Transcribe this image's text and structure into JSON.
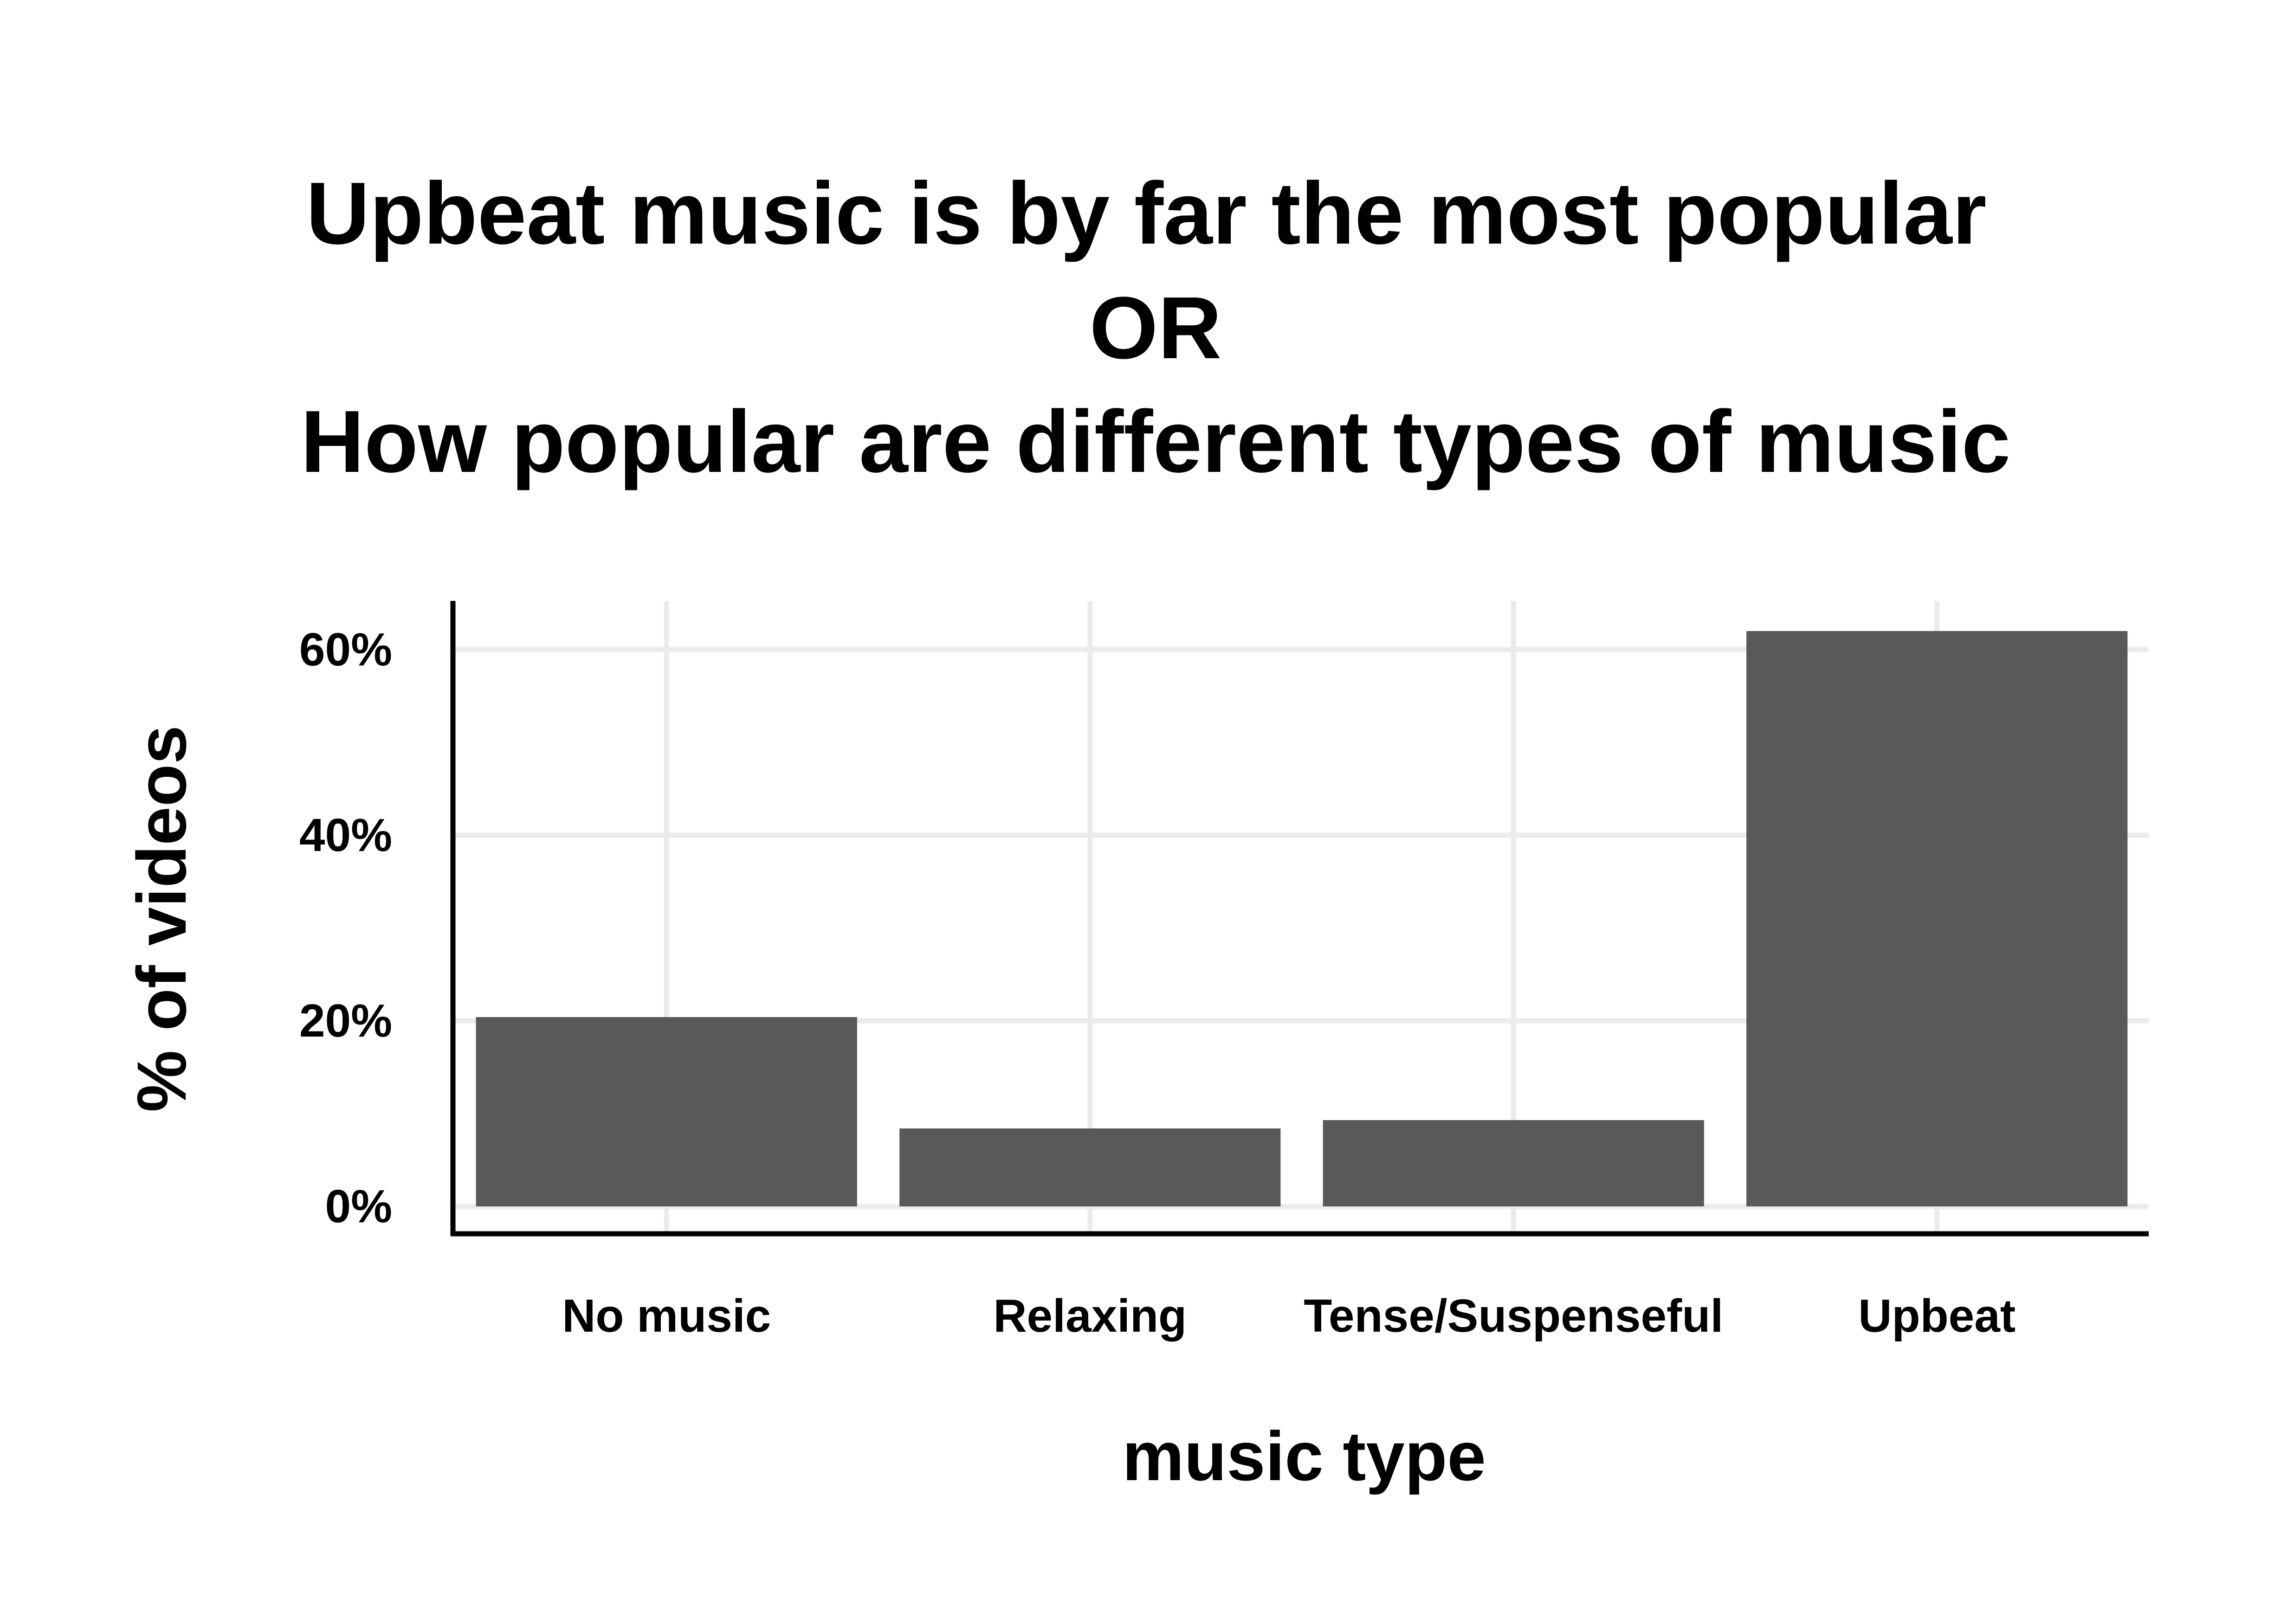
{
  "chart_data": {
    "type": "bar",
    "title_lines": [
      "Upbeat music is by far the most popular",
      "OR",
      "How popular are different types of music"
    ],
    "xlabel": "music type",
    "ylabel": "% of videos",
    "categories": [
      "No music",
      "Relaxing",
      "Tense/Suspenseful",
      "Upbeat"
    ],
    "values": [
      20.4,
      8.4,
      9.3,
      62.0
    ],
    "unit": "%",
    "ylim": [
      0,
      65
    ],
    "yticks": [
      0,
      20,
      40,
      60
    ],
    "ytick_labels": [
      "0%",
      "20%",
      "40%",
      "60%"
    ],
    "grid": true,
    "legend": "none",
    "colors": {
      "bar": "#595959",
      "grid": "#ebebeb",
      "axis": "#000000",
      "text": "#000000",
      "background": "#ffffff"
    }
  }
}
